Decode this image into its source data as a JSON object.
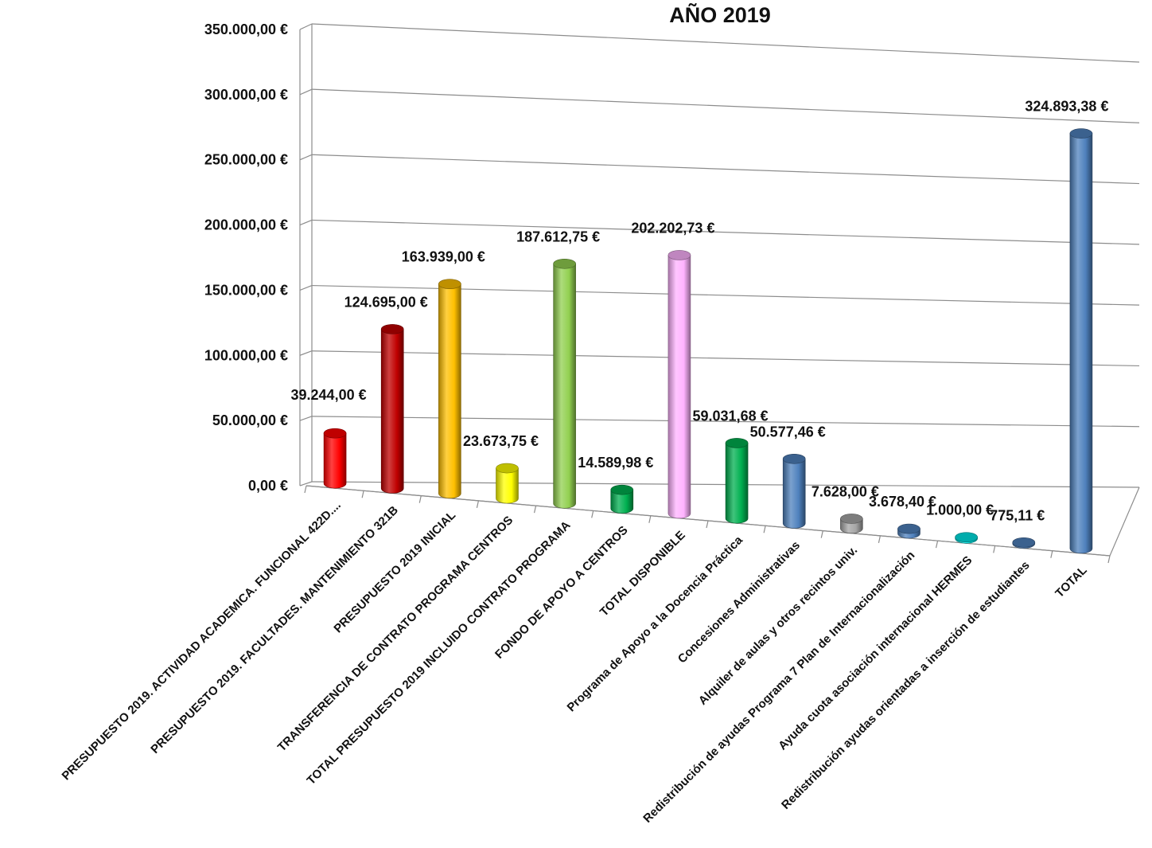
{
  "chart_data": {
    "type": "bar",
    "title": "AÑO 2019",
    "xlabel": "",
    "ylabel": "",
    "ylim": [
      0,
      350000
    ],
    "yticks": [
      "0,00 €",
      "50.000,00 €",
      "100.000,00 €",
      "150.000,00 €",
      "200.000,00 €",
      "250.000,00 €",
      "300.000,00 €",
      "350.000,00 €"
    ],
    "grid": true,
    "legend": "none",
    "categories": [
      "PRESUPUESTO 2019. ACTIVIDAD ACADEMICA. FUNCIONAL 422D....",
      "PRESUPUESTO 2019. FACULTADES. MANTENIMIENTO 321B",
      "PRESUPUESTO 2019 INICIAL",
      "TRANSFERENCIA DE CONTRATO PROGRAMA CENTROS",
      "TOTAL PRESUPUESTO 2019 INCLUIDO CONTRATO PROGRAMA",
      "FONDO DE APOYO A CENTROS",
      "TOTAL DISPONIBLE",
      "Programa de Apoyo a la Docencia Práctica",
      "Concesiones Administrativas",
      "Alquiler de aulas y otros recintos univ.",
      "Redistribución de ayudas Programa 7 Plan de Internacionalización",
      "Ayuda cuota asociación internacional HERMES",
      "Redistribución ayudas orientadas a inserción de estudiantes",
      "TOTAL"
    ],
    "values": [
      39244.0,
      124695.0,
      163939.0,
      23673.75,
      187612.75,
      14589.98,
      202202.73,
      59031.68,
      50577.46,
      7628.0,
      3678.4,
      1000.0,
      775.11,
      324893.38
    ],
    "value_labels": [
      "39.244,00 €",
      "124.695,00 €",
      "163.939,00 €",
      "23.673,75 €",
      "187.612,75 €",
      "14.589,98 €",
      "202.202,73 €",
      "59.031,68 €",
      "50.577,46 €",
      "7.628,00 €",
      "3.678,40 €",
      "1.000,00 €",
      "775,11 €",
      "324.893,38 €"
    ],
    "colors": [
      "#ff0000",
      "#c00000",
      "#ffc000",
      "#ffff00",
      "#92d050",
      "#00b050",
      "#ffb3ff",
      "#00b050",
      "#4f81bd",
      "#a6a6a6",
      "#4f81bd",
      "#00e5e5",
      "#4f81bd",
      "#4f81bd"
    ]
  }
}
